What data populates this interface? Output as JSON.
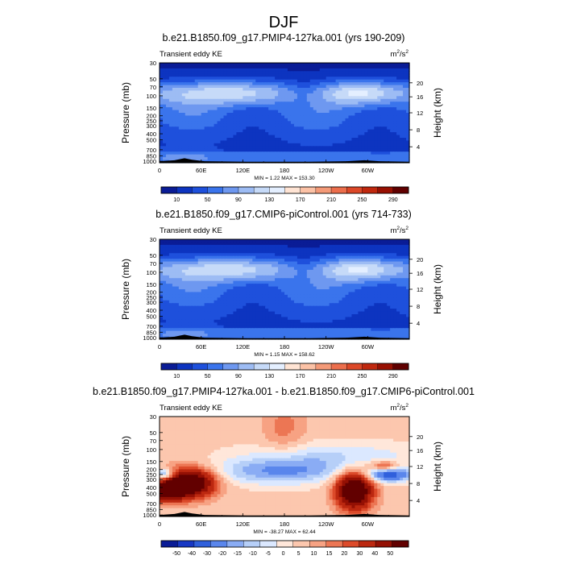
{
  "figure": {
    "title": "DJF",
    "colors": {
      "cool": [
        "#0a1c96",
        "#0d34c0",
        "#1e50dc",
        "#3a74ec",
        "#6e98f0",
        "#9dbcf4",
        "#c6daf8",
        "#e4efff"
      ],
      "warm": [
        "#ffe4d4",
        "#fcc2a6",
        "#f49a78",
        "#ec6e4c",
        "#dc4828",
        "#c0280e",
        "#981002",
        "#600000"
      ],
      "diverging": [
        "#0a1c96",
        "#1838c4",
        "#3060dc",
        "#5a86ec",
        "#8aacf4",
        "#b6cff8",
        "#dbe8ff",
        "#ffe7da",
        "#fcc7ae",
        "#f7a283",
        "#ec7654",
        "#dc4a2a",
        "#bc2810",
        "#941004",
        "#620000"
      ]
    }
  },
  "chart_data": [
    {
      "type": "heatmap",
      "title": "b.e21.B1850.f09_g17.PMIP4-127ka.001 (yrs 190-209)",
      "left_label": "Transient eddy KE",
      "units": "m²/s²",
      "units_base": "m",
      "units_sup": "2",
      "units_mid": "/s",
      "units_sup2": "2",
      "ylabel": "Pressure (mb)",
      "ylabel_right": "Height (km)",
      "yticks": [
        "30",
        "50",
        "70",
        "100",
        "150",
        "200",
        "250",
        "300",
        "400",
        "500",
        "700",
        "850",
        "1000"
      ],
      "yticks_right": [
        "20",
        "16",
        "12",
        "8",
        "4"
      ],
      "xticks": [
        "0",
        "60E",
        "120E",
        "180",
        "120W",
        "60W"
      ],
      "stats": "MIN =    1.22  MAX = 153.30",
      "colorbar_labels": [
        "10",
        "50",
        "90",
        "130",
        "170",
        "210",
        "250",
        "290"
      ],
      "field": "abs",
      "min": 1.22,
      "max": 153.3
    },
    {
      "type": "heatmap",
      "title": "b.e21.B1850.f09_g17.CMIP6-piControl.001 (yrs 714-733)",
      "left_label": "Transient eddy KE",
      "units": "m²/s²",
      "units_base": "m",
      "units_sup": "2",
      "units_mid": "/s",
      "units_sup2": "2",
      "ylabel": "Pressure (mb)",
      "ylabel_right": "Height (km)",
      "yticks": [
        "30",
        "50",
        "70",
        "100",
        "150",
        "200",
        "250",
        "300",
        "400",
        "500",
        "700",
        "850",
        "1000"
      ],
      "yticks_right": [
        "20",
        "16",
        "12",
        "8",
        "4"
      ],
      "xticks": [
        "0",
        "60E",
        "120E",
        "180",
        "120W",
        "60W"
      ],
      "stats": "MIN =    1.15  MAX = 158.62",
      "colorbar_labels": [
        "10",
        "50",
        "90",
        "130",
        "170",
        "210",
        "250",
        "290"
      ],
      "field": "abs",
      "min": 1.15,
      "max": 158.62
    },
    {
      "type": "heatmap",
      "title": "b.e21.B1850.f09_g17.PMIP4-127ka.001 - b.e21.B1850.f09_g17.CMIP6-piControl.001",
      "left_label": "Transient eddy KE",
      "units": "m²/s²",
      "units_base": "m",
      "units_sup": "2",
      "units_mid": "/s",
      "units_sup2": "2",
      "ylabel": "Pressure (mb)",
      "ylabel_right": "Height (km)",
      "yticks": [
        "30",
        "50",
        "70",
        "100",
        "150",
        "200",
        "250",
        "300",
        "400",
        "500",
        "700",
        "850",
        "1000"
      ],
      "yticks_right": [
        "20",
        "16",
        "12",
        "8",
        "4"
      ],
      "xticks": [
        "0",
        "60E",
        "120E",
        "180",
        "120W",
        "60W"
      ],
      "stats": "MIN = -38.27  MAX =  62.44",
      "colorbar_labels": [
        "-50",
        "-40",
        "-30",
        "-20",
        "-15",
        "-10",
        "-5",
        "0",
        "5",
        "10",
        "15",
        "20",
        "30",
        "40",
        "50"
      ],
      "field": "diff",
      "min": -38.27,
      "max": 62.44
    }
  ]
}
